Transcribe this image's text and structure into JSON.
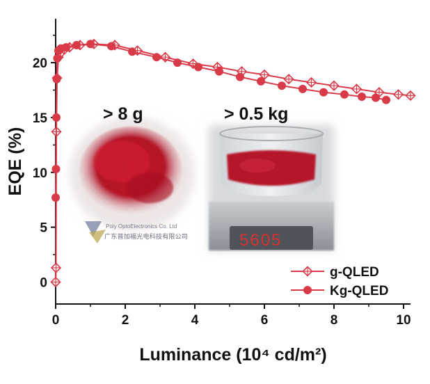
{
  "chart_data": {
    "type": "line",
    "title": "",
    "xlabel": "Luminance (10⁴ cd/m²)",
    "ylabel": "EQE (%)",
    "xlim": [
      0,
      10.2
    ],
    "ylim": [
      -2,
      24
    ],
    "xticks": [
      0,
      2,
      4,
      6,
      8,
      10
    ],
    "yticks": [
      0,
      5,
      10,
      15,
      20
    ],
    "legend": {
      "position": "bottom-right"
    },
    "series": [
      {
        "name": "g-QLED",
        "marker": "diamond-cross",
        "color": "#d93a48",
        "x": [
          0,
          0.01,
          0.02,
          0.04,
          0.08,
          0.15,
          0.25,
          0.4,
          0.7,
          1.1,
          1.7,
          2.35,
          3.15,
          3.95,
          4.65,
          5.35,
          6.0,
          6.7,
          7.35,
          8.0,
          8.65,
          9.3,
          9.85,
          10.2
        ],
        "y": [
          0,
          1.3,
          13.7,
          18.6,
          20.5,
          20.9,
          21.2,
          21.4,
          21.6,
          21.7,
          21.6,
          21.1,
          20.5,
          19.9,
          19.6,
          19.2,
          18.9,
          18.5,
          18.2,
          17.9,
          17.6,
          17.3,
          17.1,
          17.0
        ]
      },
      {
        "name": "Kg-QLED",
        "marker": "circle",
        "color": "#d93a48",
        "x": [
          0,
          0.01,
          0.02,
          0.03,
          0.05,
          0.08,
          0.15,
          0.3,
          0.6,
          1.0,
          1.6,
          2.2,
          2.9,
          3.5,
          4.1,
          4.7,
          5.3,
          5.9,
          6.5,
          7.1,
          7.7,
          8.3,
          8.8,
          9.2,
          9.5
        ],
        "y": [
          7.7,
          10.3,
          15.0,
          18.5,
          20.4,
          21.1,
          21.3,
          21.4,
          21.6,
          21.7,
          21.5,
          21.0,
          20.5,
          20.0,
          19.6,
          19.2,
          18.7,
          18.3,
          17.9,
          17.6,
          17.3,
          17.1,
          16.9,
          16.8,
          16.6
        ]
      }
    ],
    "annotations": [
      {
        "text": "> 8 g"
      },
      {
        "text": "> 0.5 kg"
      }
    ],
    "inset_photos": [
      {
        "label": "red quantum dot powder on paper",
        "vendor_text": "Poly OptoElectronics Co. Ltd",
        "vendor_text_cn": "广东普加福光电科技有限公司"
      },
      {
        "label": "glass dish of red powder on scale",
        "scale_reading": "5605"
      }
    ]
  }
}
